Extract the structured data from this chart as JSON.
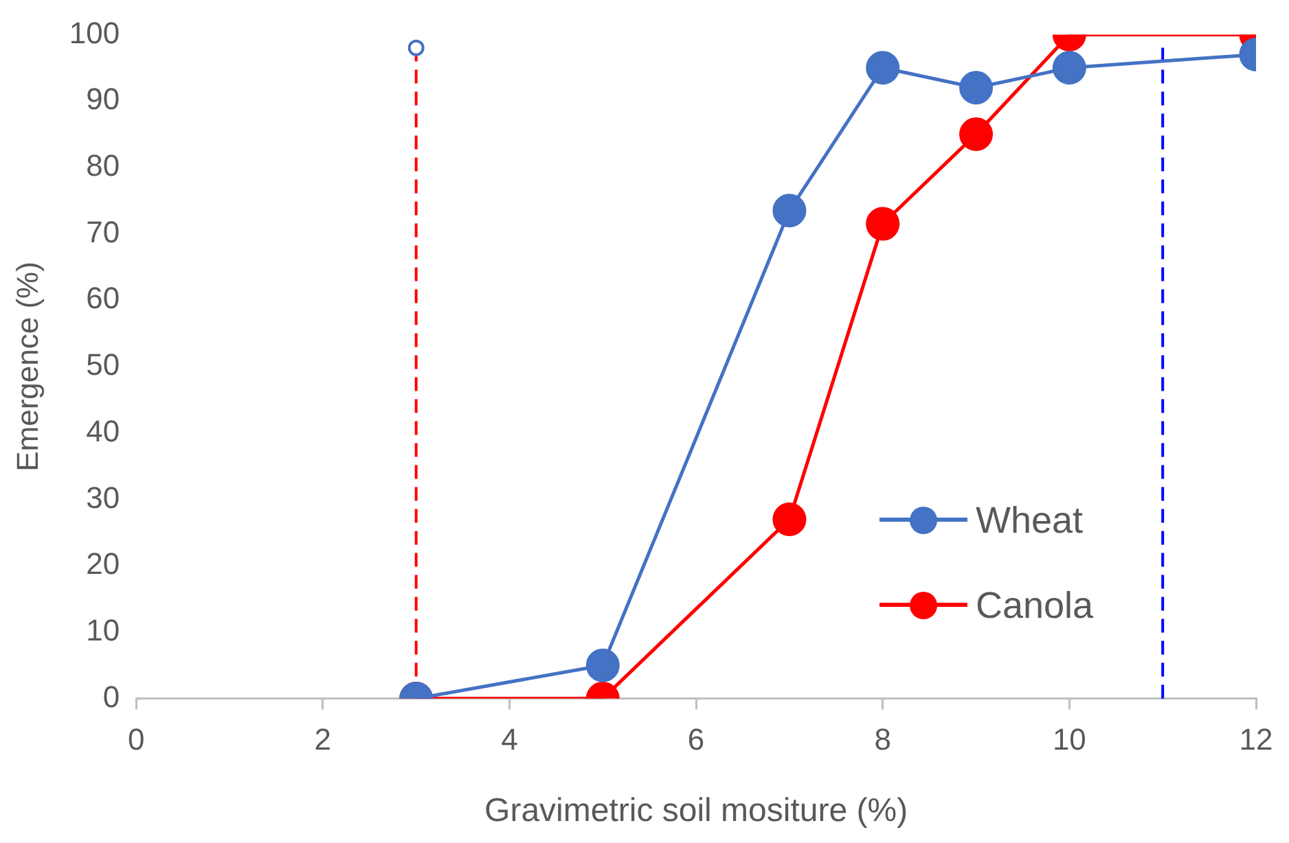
{
  "chart_data": {
    "type": "line",
    "xlabel": "Gravimetric soil mositure (%)",
    "ylabel": "Emergence (%)",
    "xlim": [
      0,
      12
    ],
    "xticks": [
      0,
      2,
      4,
      6,
      8,
      10,
      12
    ],
    "ylim": [
      0,
      100
    ],
    "yticks": [
      0,
      10,
      20,
      30,
      40,
      50,
      60,
      70,
      80,
      90,
      100
    ],
    "grid": false,
    "legend": "bottom right",
    "marker": "circle",
    "series": [
      {
        "name": "Wheat",
        "color": "#4472c4",
        "x": [
          3,
          5,
          7,
          8,
          9,
          10,
          12
        ],
        "values": [
          0,
          5,
          73.5,
          95,
          92,
          95,
          97
        ]
      },
      {
        "name": "Canola",
        "color": "#ff0000",
        "x": [
          3,
          5,
          7,
          8,
          9,
          10,
          12
        ],
        "values": [
          0,
          0,
          27,
          71.5,
          85,
          100,
          100
        ]
      },
      {
        "type": "scatter",
        "color": "#4472c4",
        "x": [
          3
        ],
        "values": [
          98
        ]
      }
    ],
    "ref_lines": [
      {
        "axis": "x",
        "value": 3,
        "color": "#ff0000",
        "line_style": "dashed"
      },
      {
        "axis": "x",
        "value": 11,
        "color": "#0000ff",
        "line_style": "dashed"
      }
    ]
  }
}
